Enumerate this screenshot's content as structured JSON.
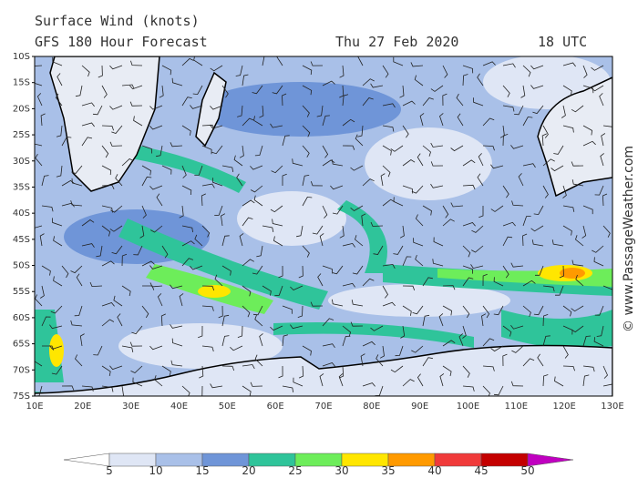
{
  "header": {
    "title": "Surface Wind (knots)",
    "subtitle": "GFS 180 Hour Forecast",
    "date": "Thu 27 Feb 2020",
    "time": "18 UTC"
  },
  "map": {
    "lat_labels": [
      "10S",
      "15S",
      "20S",
      "25S",
      "30S",
      "35S",
      "40S",
      "45S",
      "50S",
      "55S",
      "60S",
      "65S",
      "70S",
      "75S"
    ],
    "lon_labels": [
      "10E",
      "20E",
      "30E",
      "40E",
      "50E",
      "60E",
      "70E",
      "80E",
      "90E",
      "100E",
      "110E",
      "120E",
      "130E"
    ]
  },
  "legend": {
    "labels": [
      "5",
      "10",
      "15",
      "20",
      "25",
      "30",
      "35",
      "40",
      "45",
      "50"
    ],
    "colors": [
      "#ffffff",
      "#dfe6f5",
      "#a9c0e8",
      "#6f95d8",
      "#2fc49a",
      "#6ded5a",
      "#ffe600",
      "#ff9a00",
      "#f03a3a",
      "#c40000",
      "#c000c0"
    ]
  },
  "watermark": "© www.PassageWeather.com"
}
